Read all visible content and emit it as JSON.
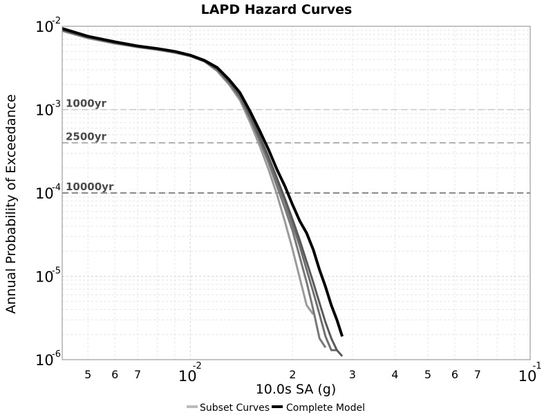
{
  "chart_data": {
    "type": "line",
    "title": "LAPD Hazard Curves",
    "xlabel": "10.0s SA (g)",
    "ylabel": "Annual Probability of Exceedance",
    "x_scale": "log",
    "y_scale": "log",
    "xlim": [
      0.0042,
      0.1
    ],
    "ylim": [
      1e-06,
      0.01
    ],
    "grid": true,
    "x_major_ticks": [
      {
        "value": 0.01,
        "base": "10",
        "exp": "-2"
      },
      {
        "value": 0.1,
        "base": "10",
        "exp": "-1"
      }
    ],
    "x_minor_ticks": [
      {
        "value": 0.005,
        "label": "5"
      },
      {
        "value": 0.006,
        "label": "6"
      },
      {
        "value": 0.007,
        "label": "7"
      },
      {
        "value": 0.02,
        "label": "2"
      },
      {
        "value": 0.03,
        "label": "3"
      },
      {
        "value": 0.04,
        "label": "4"
      },
      {
        "value": 0.05,
        "label": "5"
      },
      {
        "value": 0.06,
        "label": "6"
      },
      {
        "value": 0.07,
        "label": "7"
      }
    ],
    "y_major_ticks": [
      {
        "value": 0.01,
        "base": "10",
        "exp": "-2"
      },
      {
        "value": 0.001,
        "base": "10",
        "exp": "-3"
      },
      {
        "value": 0.0001,
        "base": "10",
        "exp": "-4"
      },
      {
        "value": 1e-05,
        "base": "10",
        "exp": "-5"
      },
      {
        "value": 1e-06,
        "base": "10",
        "exp": "-6"
      }
    ],
    "reference_lines": [
      {
        "label": "1000yr",
        "value": 0.001,
        "color": "#c8c8c8"
      },
      {
        "label": "2500yr",
        "value": 0.0004,
        "color": "#969696"
      },
      {
        "label": "10000yr",
        "value": 0.0001,
        "color": "#646464"
      }
    ],
    "reference_label_color": "#4a4a4a",
    "legend": {
      "placement": "bottom-center",
      "entries": [
        {
          "label": "Subset Curves",
          "color": "#bbbbbb"
        },
        {
          "label": "Complete Model",
          "color": "#000000"
        }
      ]
    },
    "series": [
      {
        "group": "Subset Curves",
        "color": "#9a9a9a",
        "x": [
          0.0042,
          0.005,
          0.006,
          0.007,
          0.008,
          0.009,
          0.01,
          0.011,
          0.012,
          0.013,
          0.014,
          0.015,
          0.016,
          0.017,
          0.018,
          0.019,
          0.02,
          0.021,
          0.022,
          0.023
        ],
        "y": [
          0.0088,
          0.0072,
          0.0062,
          0.0056,
          0.0052,
          0.0048,
          0.0044,
          0.0038,
          0.0029,
          0.002,
          0.0013,
          0.0007,
          0.00037,
          0.00019,
          9.5e-05,
          4.5e-05,
          2.1e-05,
          9.5e-06,
          4.5e-06,
          3.5e-06
        ]
      },
      {
        "group": "Subset Curves",
        "color": "#787878",
        "x": [
          0.0042,
          0.005,
          0.006,
          0.007,
          0.008,
          0.009,
          0.01,
          0.011,
          0.012,
          0.013,
          0.014,
          0.015,
          0.016,
          0.017,
          0.018,
          0.019,
          0.02,
          0.021,
          0.022,
          0.023,
          0.024,
          0.025
        ],
        "y": [
          0.0089,
          0.0073,
          0.0063,
          0.0057,
          0.0053,
          0.0049,
          0.0044,
          0.0038,
          0.003,
          0.0021,
          0.0014,
          0.00078,
          0.00043,
          0.00023,
          0.00012,
          6.5e-05,
          3.5e-05,
          1.7e-05,
          8.5e-06,
          4e-06,
          1.8e-06,
          1.4e-06
        ]
      },
      {
        "group": "Subset Curves",
        "color": "#6e6e6e",
        "x": [
          0.0042,
          0.005,
          0.006,
          0.007,
          0.008,
          0.009,
          0.01,
          0.011,
          0.012,
          0.013,
          0.014,
          0.015,
          0.016,
          0.017,
          0.018,
          0.019,
          0.02,
          0.021,
          0.022,
          0.023,
          0.024,
          0.025,
          0.026,
          0.027
        ],
        "y": [
          0.009,
          0.0074,
          0.0063,
          0.0057,
          0.0053,
          0.0049,
          0.0044,
          0.0038,
          0.003,
          0.0021,
          0.0014,
          0.0008,
          0.00045,
          0.00025,
          0.00014,
          7.8e-05,
          4.2e-05,
          2.3e-05,
          1.2e-05,
          6.5e-06,
          3.5e-06,
          1.9e-06,
          1.3e-06,
          1.3e-06
        ]
      },
      {
        "group": "Subset Curves",
        "color": "#5a5a5a",
        "x": [
          0.0042,
          0.005,
          0.006,
          0.007,
          0.008,
          0.009,
          0.01,
          0.011,
          0.012,
          0.013,
          0.014,
          0.015,
          0.016,
          0.017,
          0.018,
          0.019,
          0.02,
          0.021,
          0.022,
          0.023,
          0.024,
          0.025,
          0.026,
          0.027,
          0.028
        ],
        "y": [
          0.0091,
          0.0074,
          0.0064,
          0.0057,
          0.0053,
          0.0049,
          0.0044,
          0.0038,
          0.0031,
          0.0022,
          0.0015,
          0.00085,
          0.00048,
          0.00027,
          0.00015,
          8.5e-05,
          4.8e-05,
          2.7e-05,
          1.5e-05,
          8.5e-06,
          4.8e-06,
          2.8e-06,
          1.8e-06,
          1.3e-06,
          1.1e-06
        ]
      },
      {
        "group": "Complete Model",
        "color": "#000000",
        "x": [
          0.0042,
          0.005,
          0.006,
          0.007,
          0.008,
          0.009,
          0.01,
          0.011,
          0.012,
          0.013,
          0.014,
          0.015,
          0.016,
          0.017,
          0.018,
          0.019,
          0.02,
          0.021,
          0.022,
          0.023,
          0.024,
          0.025,
          0.026,
          0.027,
          0.028
        ],
        "y": [
          0.0094,
          0.0076,
          0.0065,
          0.0058,
          0.0054,
          0.005,
          0.0045,
          0.0039,
          0.0032,
          0.0023,
          0.0016,
          0.00095,
          0.00056,
          0.00033,
          0.00019,
          0.00012,
          7.2e-05,
          4.6e-05,
          3.3e-05,
          2.1e-05,
          1.2e-05,
          7.5e-06,
          4.5e-06,
          3e-06,
          1.9e-06
        ]
      }
    ]
  }
}
